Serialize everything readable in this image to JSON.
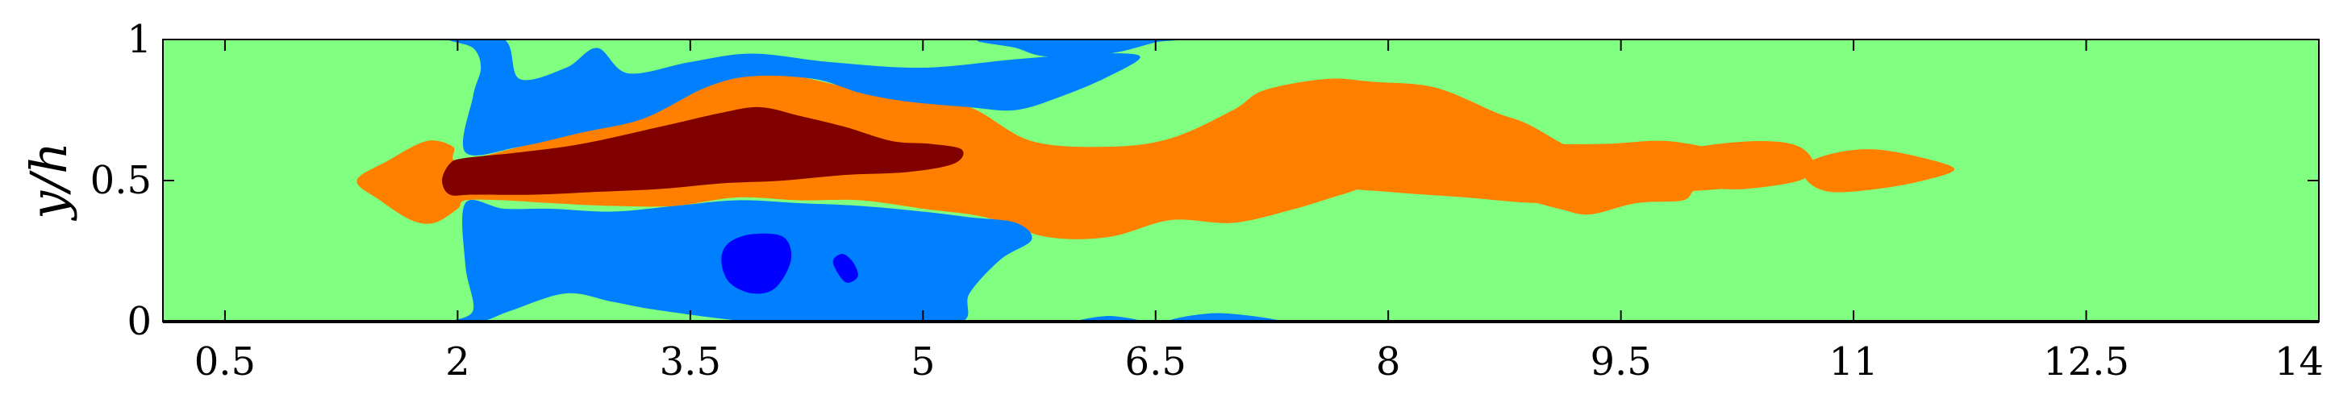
{
  "chart_data": {
    "type": "heatmap",
    "title": "",
    "xlabel": "",
    "ylabel": "y/h",
    "xlim": [
      0.1,
      14
    ],
    "ylim": [
      0,
      1
    ],
    "xticks": [
      0.5,
      2,
      3.5,
      5,
      6.5,
      8,
      9.5,
      11,
      12.5,
      14
    ],
    "xtick_labels": [
      "0.5",
      "2",
      "3.5",
      "5",
      "6.5",
      "8",
      "9.5",
      "11",
      "12.5",
      "14"
    ],
    "yticks": [
      0,
      0.5,
      1
    ],
    "ytick_labels": [
      "0",
      "0.5",
      "1"
    ],
    "grid": false,
    "legend": "none",
    "colormap": "jet (5 discrete contour levels)",
    "level_colors": {
      "background": "#80ff80",
      "negative_weak": "#0080ff",
      "negative_strong": "#0000ff",
      "positive_weak": "#ff8000",
      "positive_strong": "#800000"
    },
    "regions": [
      {
        "name": "orange-wake-left",
        "level": "positive_weak",
        "points": [
          [
            1.35,
            0.5
          ],
          [
            1.55,
            0.57
          ],
          [
            1.8,
            0.64
          ],
          [
            1.97,
            0.62
          ],
          [
            2.0,
            0.57
          ],
          [
            2.4,
            0.62
          ],
          [
            2.8,
            0.68
          ],
          [
            3.2,
            0.74
          ],
          [
            3.6,
            0.87
          ],
          [
            3.9,
            0.91
          ],
          [
            4.2,
            0.87
          ],
          [
            4.6,
            0.82
          ],
          [
            4.9,
            0.79
          ],
          [
            5.3,
            0.76
          ],
          [
            5.7,
            0.64
          ],
          [
            6.2,
            0.62
          ],
          [
            6.6,
            0.65
          ],
          [
            7.0,
            0.75
          ],
          [
            7.2,
            0.82
          ],
          [
            7.6,
            0.86
          ],
          [
            7.9,
            0.85
          ],
          [
            8.3,
            0.83
          ],
          [
            8.7,
            0.74
          ],
          [
            8.9,
            0.7
          ],
          [
            9.25,
            0.6
          ],
          [
            9.65,
            0.57
          ],
          [
            10.0,
            0.62
          ],
          [
            10.4,
            0.64
          ],
          [
            10.65,
            0.62
          ],
          [
            10.75,
            0.55
          ],
          [
            10.65,
            0.5
          ],
          [
            10.3,
            0.47
          ],
          [
            10.0,
            0.47
          ],
          [
            9.9,
            0.43
          ],
          [
            9.6,
            0.42
          ],
          [
            9.3,
            0.38
          ],
          [
            9.1,
            0.4
          ],
          [
            8.8,
            0.44
          ],
          [
            8.5,
            0.45
          ],
          [
            8.0,
            0.49
          ],
          [
            7.7,
            0.45
          ],
          [
            7.4,
            0.4
          ],
          [
            7.0,
            0.35
          ],
          [
            6.6,
            0.36
          ],
          [
            6.2,
            0.3
          ],
          [
            5.8,
            0.3
          ],
          [
            5.4,
            0.37
          ],
          [
            5.0,
            0.4
          ],
          [
            4.6,
            0.43
          ],
          [
            4.2,
            0.43
          ],
          [
            3.8,
            0.44
          ],
          [
            3.4,
            0.41
          ],
          [
            3.0,
            0.41
          ],
          [
            2.6,
            0.42
          ],
          [
            2.3,
            0.43
          ],
          [
            2.05,
            0.43
          ],
          [
            2.0,
            0.4
          ],
          [
            1.85,
            0.35
          ],
          [
            1.7,
            0.36
          ],
          [
            1.5,
            0.43
          ]
        ]
      },
      {
        "name": "orange-wake-right",
        "level": "positive_weak",
        "points": [
          [
            7.4,
            0.76
          ],
          [
            7.6,
            0.74
          ],
          [
            7.9,
            0.71
          ],
          [
            8.25,
            0.69
          ],
          [
            8.6,
            0.64
          ],
          [
            9.0,
            0.63
          ],
          [
            9.4,
            0.63
          ],
          [
            9.8,
            0.64
          ],
          [
            10.2,
            0.6
          ],
          [
            10.4,
            0.57
          ],
          [
            10.45,
            0.52
          ],
          [
            10.3,
            0.48
          ],
          [
            9.9,
            0.46
          ],
          [
            9.5,
            0.44
          ],
          [
            9.0,
            0.42
          ],
          [
            8.5,
            0.44
          ],
          [
            8.0,
            0.46
          ],
          [
            7.7,
            0.48
          ],
          [
            7.4,
            0.56
          ],
          [
            7.35,
            0.66
          ]
        ]
      },
      {
        "name": "orange-blob-far",
        "level": "positive_weak",
        "points": [
          [
            10.7,
            0.56
          ],
          [
            10.9,
            0.6
          ],
          [
            11.15,
            0.61
          ],
          [
            11.45,
            0.58
          ],
          [
            11.65,
            0.54
          ],
          [
            11.45,
            0.5
          ],
          [
            11.15,
            0.47
          ],
          [
            10.85,
            0.46
          ],
          [
            10.7,
            0.5
          ]
        ]
      },
      {
        "name": "dark-red-core",
        "level": "positive_strong",
        "points": [
          [
            1.9,
            0.5
          ],
          [
            1.95,
            0.56
          ],
          [
            2.05,
            0.58
          ],
          [
            2.4,
            0.6
          ],
          [
            2.8,
            0.63
          ],
          [
            3.3,
            0.69
          ],
          [
            3.7,
            0.74
          ],
          [
            3.95,
            0.76
          ],
          [
            4.2,
            0.73
          ],
          [
            4.5,
            0.69
          ],
          [
            4.8,
            0.64
          ],
          [
            5.05,
            0.63
          ],
          [
            5.25,
            0.61
          ],
          [
            5.2,
            0.56
          ],
          [
            4.9,
            0.53
          ],
          [
            4.5,
            0.52
          ],
          [
            4.1,
            0.5
          ],
          [
            3.7,
            0.49
          ],
          [
            3.3,
            0.47
          ],
          [
            2.9,
            0.46
          ],
          [
            2.5,
            0.45
          ],
          [
            2.1,
            0.45
          ],
          [
            1.95,
            0.45
          ]
        ]
      },
      {
        "name": "blue-top-1",
        "level": "negative_weak",
        "points": [
          [
            1.95,
            1.0
          ],
          [
            2.1,
            0.97
          ],
          [
            2.15,
            0.9
          ],
          [
            2.1,
            0.8
          ],
          [
            2.05,
            0.6
          ],
          [
            2.4,
            0.62
          ],
          [
            2.8,
            0.67
          ],
          [
            3.2,
            0.72
          ],
          [
            3.6,
            0.83
          ],
          [
            3.9,
            0.87
          ],
          [
            4.3,
            0.86
          ],
          [
            4.6,
            0.81
          ],
          [
            4.9,
            0.78
          ],
          [
            5.3,
            0.76
          ],
          [
            5.6,
            0.75
          ],
          [
            5.9,
            0.8
          ],
          [
            6.2,
            0.87
          ],
          [
            6.4,
            0.94
          ],
          [
            6.1,
            0.95
          ],
          [
            5.6,
            0.93
          ],
          [
            5.0,
            0.9
          ],
          [
            4.4,
            0.92
          ],
          [
            3.9,
            0.95
          ],
          [
            3.5,
            0.92
          ],
          [
            3.1,
            0.88
          ],
          [
            2.9,
            0.97
          ],
          [
            2.7,
            0.9
          ],
          [
            2.4,
            0.86
          ],
          [
            2.3,
            1.0
          ]
        ]
      },
      {
        "name": "blue-top-2",
        "level": "negative_weak",
        "points": [
          [
            5.4,
            1.0
          ],
          [
            5.6,
            0.97
          ],
          [
            5.8,
            0.94
          ],
          [
            6.2,
            0.95
          ],
          [
            6.5,
            0.99
          ],
          [
            6.6,
            1.0
          ]
        ]
      },
      {
        "name": "blue-bottom-1",
        "level": "negative_weak",
        "points": [
          [
            2.05,
            0.42
          ],
          [
            2.3,
            0.4
          ],
          [
            2.6,
            0.4
          ],
          [
            3.0,
            0.39
          ],
          [
            3.4,
            0.41
          ],
          [
            3.8,
            0.43
          ],
          [
            4.2,
            0.42
          ],
          [
            4.6,
            0.41
          ],
          [
            5.0,
            0.39
          ],
          [
            5.3,
            0.37
          ],
          [
            5.6,
            0.35
          ],
          [
            5.7,
            0.29
          ],
          [
            5.5,
            0.22
          ],
          [
            5.3,
            0.1
          ],
          [
            5.25,
            0.0
          ],
          [
            4.8,
            0.0
          ],
          [
            4.4,
            0.0
          ],
          [
            3.9,
            0.0
          ],
          [
            3.3,
            0.04
          ],
          [
            3.0,
            0.07
          ],
          [
            2.7,
            0.1
          ],
          [
            2.35,
            0.04
          ],
          [
            2.15,
            0.0
          ],
          [
            1.95,
            0.0
          ],
          [
            2.1,
            0.04
          ],
          [
            2.05,
            0.2
          ]
        ]
      },
      {
        "name": "blue-bottom-2",
        "level": "negative_weak",
        "points": [
          [
            6.0,
            0.0
          ],
          [
            6.2,
            0.02
          ],
          [
            6.4,
            0.0
          ]
        ]
      },
      {
        "name": "blue-bottom-3",
        "level": "negative_weak",
        "points": [
          [
            6.6,
            0.0
          ],
          [
            6.9,
            0.03
          ],
          [
            7.3,
            0.0
          ]
        ]
      },
      {
        "name": "dark-blue-core-1",
        "level": "negative_strong",
        "points": [
          [
            3.7,
            0.22
          ],
          [
            3.75,
            0.28
          ],
          [
            3.9,
            0.31
          ],
          [
            4.1,
            0.3
          ],
          [
            4.15,
            0.22
          ],
          [
            4.05,
            0.12
          ],
          [
            3.9,
            0.1
          ],
          [
            3.75,
            0.14
          ]
        ]
      },
      {
        "name": "dark-blue-core-2",
        "level": "negative_strong",
        "points": [
          [
            4.42,
            0.21
          ],
          [
            4.48,
            0.24
          ],
          [
            4.55,
            0.21
          ],
          [
            4.58,
            0.16
          ],
          [
            4.5,
            0.14
          ]
        ]
      }
    ]
  }
}
